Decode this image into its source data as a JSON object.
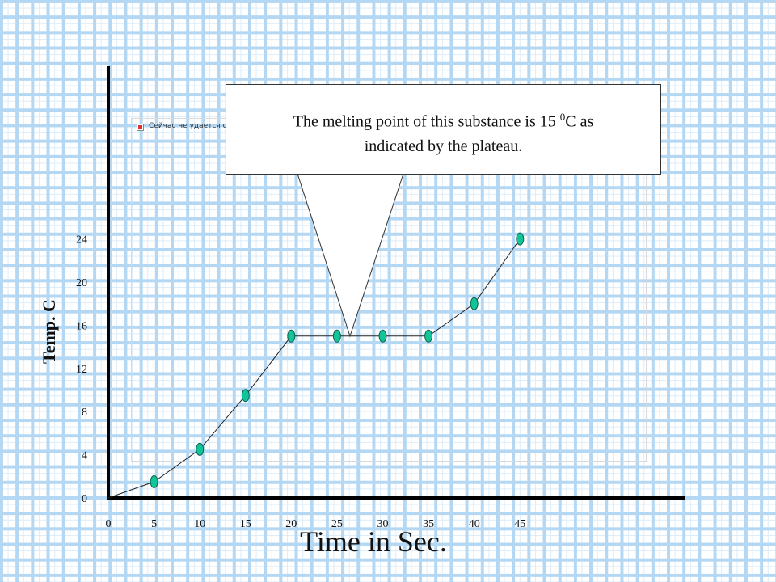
{
  "chart_data": {
    "type": "line",
    "x": [
      5,
      10,
      15,
      20,
      25,
      30,
      35,
      40,
      45
    ],
    "series": [
      {
        "values": [
          1.5,
          4.5,
          9.5,
          15,
          15,
          15,
          15,
          18,
          24
        ]
      }
    ],
    "line_start": [
      0,
      0
    ],
    "x_ticks": [
      "0",
      "5",
      "10",
      "15",
      "20",
      "25",
      "30",
      "35",
      "40",
      "45"
    ],
    "y_ticks": [
      "0",
      "4",
      "8",
      "12",
      "16",
      "20",
      "24"
    ],
    "xlim": [
      0,
      63
    ],
    "ylim": [
      0,
      40
    ],
    "xlabel": "Time in Sec.",
    "ylabel": "Temp. C",
    "grid": true,
    "colors": {
      "marker_fill": "#12c49a",
      "marker_stroke": "#0b5e4a",
      "line": "#222222",
      "axis": "#000000"
    }
  },
  "callout": {
    "line1_pre": "The melting point of this substance is 15 ",
    "line1_sup": "0",
    "line1_post": "C as",
    "line2": "indicated by the plateau."
  },
  "broken_image_text": "Сейчас не удается отобразить рисунок."
}
